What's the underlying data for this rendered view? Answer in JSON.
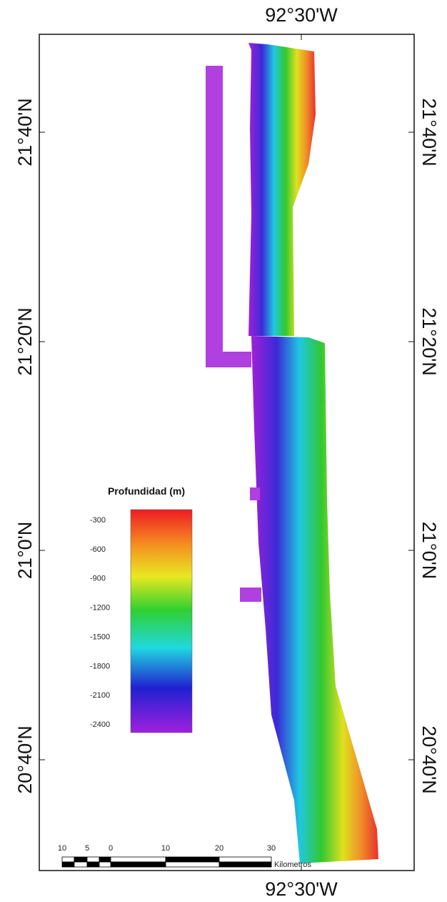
{
  "coordinates": {
    "longitude_top": "92°30'W",
    "longitude_bottom": "92°30'W",
    "latitudes_left": [
      "21°40'N",
      "21°20'N",
      "21°0'N",
      "20°40'N"
    ],
    "latitudes_right": [
      "21°40'N",
      "21°20'N",
      "21°0'N",
      "20°40'N"
    ]
  },
  "legend": {
    "title": "Profundidad (m)",
    "ticks": [
      -300,
      -600,
      -900,
      -1200,
      -1500,
      -1800,
      -2100,
      -2400
    ]
  },
  "scale_bar": {
    "labels": [
      10,
      5,
      0,
      10,
      20,
      30
    ],
    "unit": "Kilometros"
  }
}
